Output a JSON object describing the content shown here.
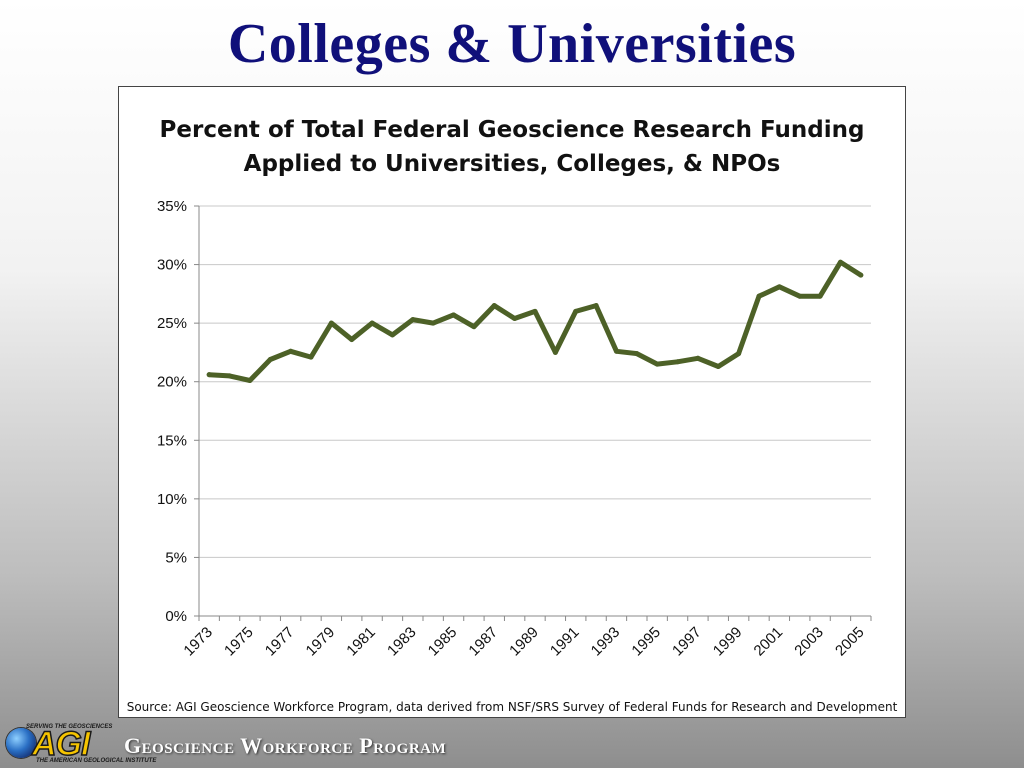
{
  "slide": {
    "title": "Colleges & Universities"
  },
  "footer": {
    "logo_tagline": "SERVING THE GEOSCIENCES",
    "logo_name": "AGI",
    "logo_subtitle": "THE AMERICAN GEOLOGICAL INSTITUTE",
    "program": "Geoscience Workforce Program"
  },
  "chart_data": {
    "type": "line",
    "title": "Percent of Total Federal Geoscience Research Funding",
    "subtitle": "Applied to Universities, Colleges, & NPOs",
    "source": "Source: AGI Geoscience Workforce Program, data derived from NSF/SRS Survey of Federal Funds for Research and Development",
    "xlabel": "",
    "ylabel": "",
    "ylim": [
      0,
      35
    ],
    "yticks": [
      0,
      5,
      10,
      15,
      20,
      25,
      30,
      35
    ],
    "ytick_format": "percent",
    "grid": true,
    "legend": "none",
    "line_color": "#4d6127",
    "x": [
      1973,
      1974,
      1975,
      1976,
      1977,
      1978,
      1979,
      1980,
      1981,
      1982,
      1983,
      1984,
      1985,
      1986,
      1987,
      1988,
      1989,
      1990,
      1991,
      1992,
      1993,
      1994,
      1995,
      1996,
      1997,
      1998,
      1999,
      2000,
      2001,
      2002,
      2003,
      2004,
      2005
    ],
    "xtick_labels": [
      "1973",
      "1975",
      "1977",
      "1979",
      "1981",
      "1983",
      "1985",
      "1987",
      "1989",
      "1991",
      "1993",
      "1995",
      "1997",
      "1999",
      "2001",
      "2003",
      "2005"
    ],
    "series": [
      {
        "values": [
          20.6,
          20.5,
          20.1,
          21.9,
          22.6,
          22.1,
          25.0,
          23.6,
          25.0,
          24.0,
          25.3,
          25.0,
          25.7,
          24.7,
          26.5,
          25.4,
          26.0,
          22.5,
          26.0,
          26.5,
          22.6,
          22.4,
          21.5,
          21.7,
          22.0,
          21.3,
          22.4,
          27.3,
          28.1,
          27.3,
          27.3,
          30.2,
          29.1
        ]
      }
    ]
  }
}
